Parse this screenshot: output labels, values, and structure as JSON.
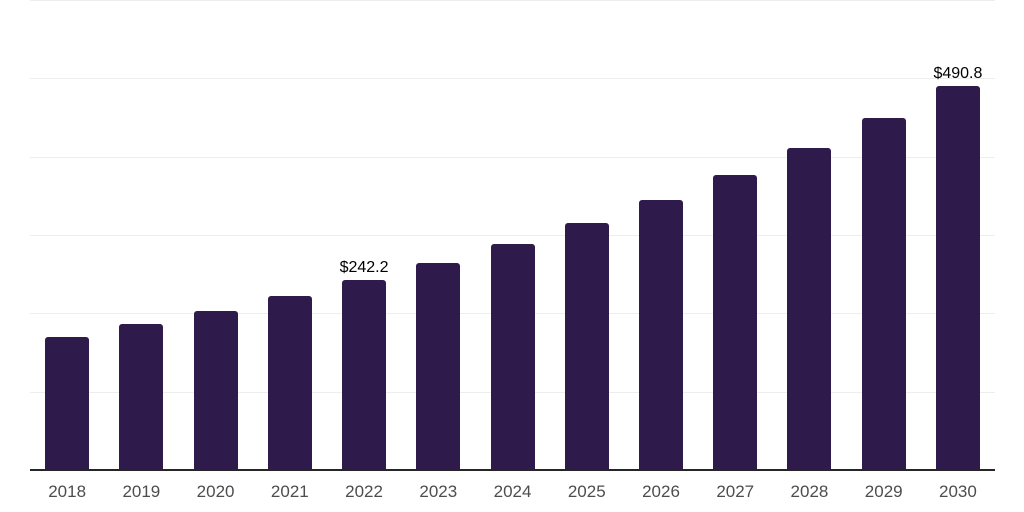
{
  "chart_data": {
    "type": "bar",
    "title": "",
    "xlabel": "",
    "ylabel": "",
    "categories": [
      "2018",
      "2019",
      "2020",
      "2021",
      "2022",
      "2023",
      "2024",
      "2025",
      "2026",
      "2027",
      "2028",
      "2029",
      "2030"
    ],
    "values": [
      170.2,
      185.9,
      203.1,
      221.7,
      242.2,
      264.6,
      289.0,
      315.6,
      344.8,
      376.6,
      411.3,
      449.3,
      490.8
    ],
    "bar_labels": [
      "",
      "",
      "",
      "",
      "$242.2",
      "",
      "",
      "",
      "",
      "",
      "",
      "",
      "$490.8"
    ],
    "ylim": [
      0,
      600
    ],
    "ytick_step": 100,
    "ytick_labels_visible": false,
    "grid": true,
    "legend": "none",
    "colors": {
      "bar": "#2e1a4b",
      "axis_line": "#262626",
      "gridline": "#ededed",
      "tick_label": "#4d4d4d",
      "data_label": "#000000",
      "background": "#ffffff"
    }
  }
}
